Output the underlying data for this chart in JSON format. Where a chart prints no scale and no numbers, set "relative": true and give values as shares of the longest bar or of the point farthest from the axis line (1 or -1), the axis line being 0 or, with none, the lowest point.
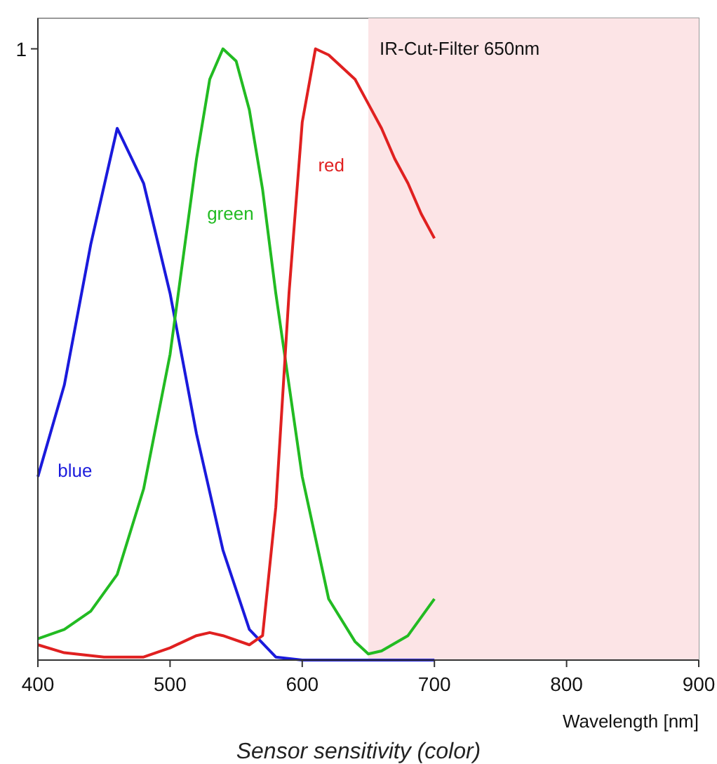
{
  "chart_data": {
    "type": "line",
    "title": "Sensor sensitivity (color)",
    "xlabel": "Wavelength [nm]",
    "xlim": [
      400,
      900
    ],
    "xticks": [
      400,
      500,
      600,
      700,
      800,
      900
    ],
    "relative": true,
    "annotations": [
      "1"
    ],
    "legend": false,
    "marker": "none",
    "line_style": "solid",
    "bands": [
      {
        "axis": "x",
        "from": 650,
        "to": 900,
        "label": "IR-Cut-Filter 650nm",
        "color": "#fce4e6"
      }
    ],
    "series": [
      {
        "name": "blue",
        "color": "#1a1adc",
        "x": [
          400,
          420,
          440,
          460,
          480,
          500,
          520,
          540,
          560,
          580,
          600,
          650,
          700
        ],
        "values": [
          0.3,
          0.45,
          0.68,
          0.87,
          0.78,
          0.6,
          0.37,
          0.18,
          0.05,
          0.005,
          0,
          0,
          0
        ]
      },
      {
        "name": "green",
        "color": "#22bb22",
        "x": [
          400,
          420,
          440,
          460,
          480,
          500,
          510,
          520,
          530,
          540,
          550,
          560,
          570,
          580,
          590,
          600,
          620,
          640,
          650,
          660,
          680,
          700
        ],
        "values": [
          0.035,
          0.05,
          0.08,
          0.14,
          0.28,
          0.5,
          0.66,
          0.82,
          0.95,
          1.0,
          0.98,
          0.9,
          0.77,
          0.6,
          0.45,
          0.3,
          0.1,
          0.03,
          0.01,
          0.015,
          0.04,
          0.1
        ]
      },
      {
        "name": "red",
        "color": "#e02020",
        "x": [
          400,
          420,
          450,
          480,
          500,
          520,
          530,
          540,
          560,
          570,
          580,
          590,
          600,
          610,
          620,
          640,
          650,
          660,
          670,
          680,
          690,
          700
        ],
        "values": [
          0.025,
          0.012,
          0.005,
          0.005,
          0.02,
          0.04,
          0.045,
          0.04,
          0.025,
          0.04,
          0.25,
          0.6,
          0.88,
          1.0,
          0.99,
          0.95,
          0.91,
          0.87,
          0.82,
          0.78,
          0.73,
          0.69
        ]
      }
    ]
  }
}
